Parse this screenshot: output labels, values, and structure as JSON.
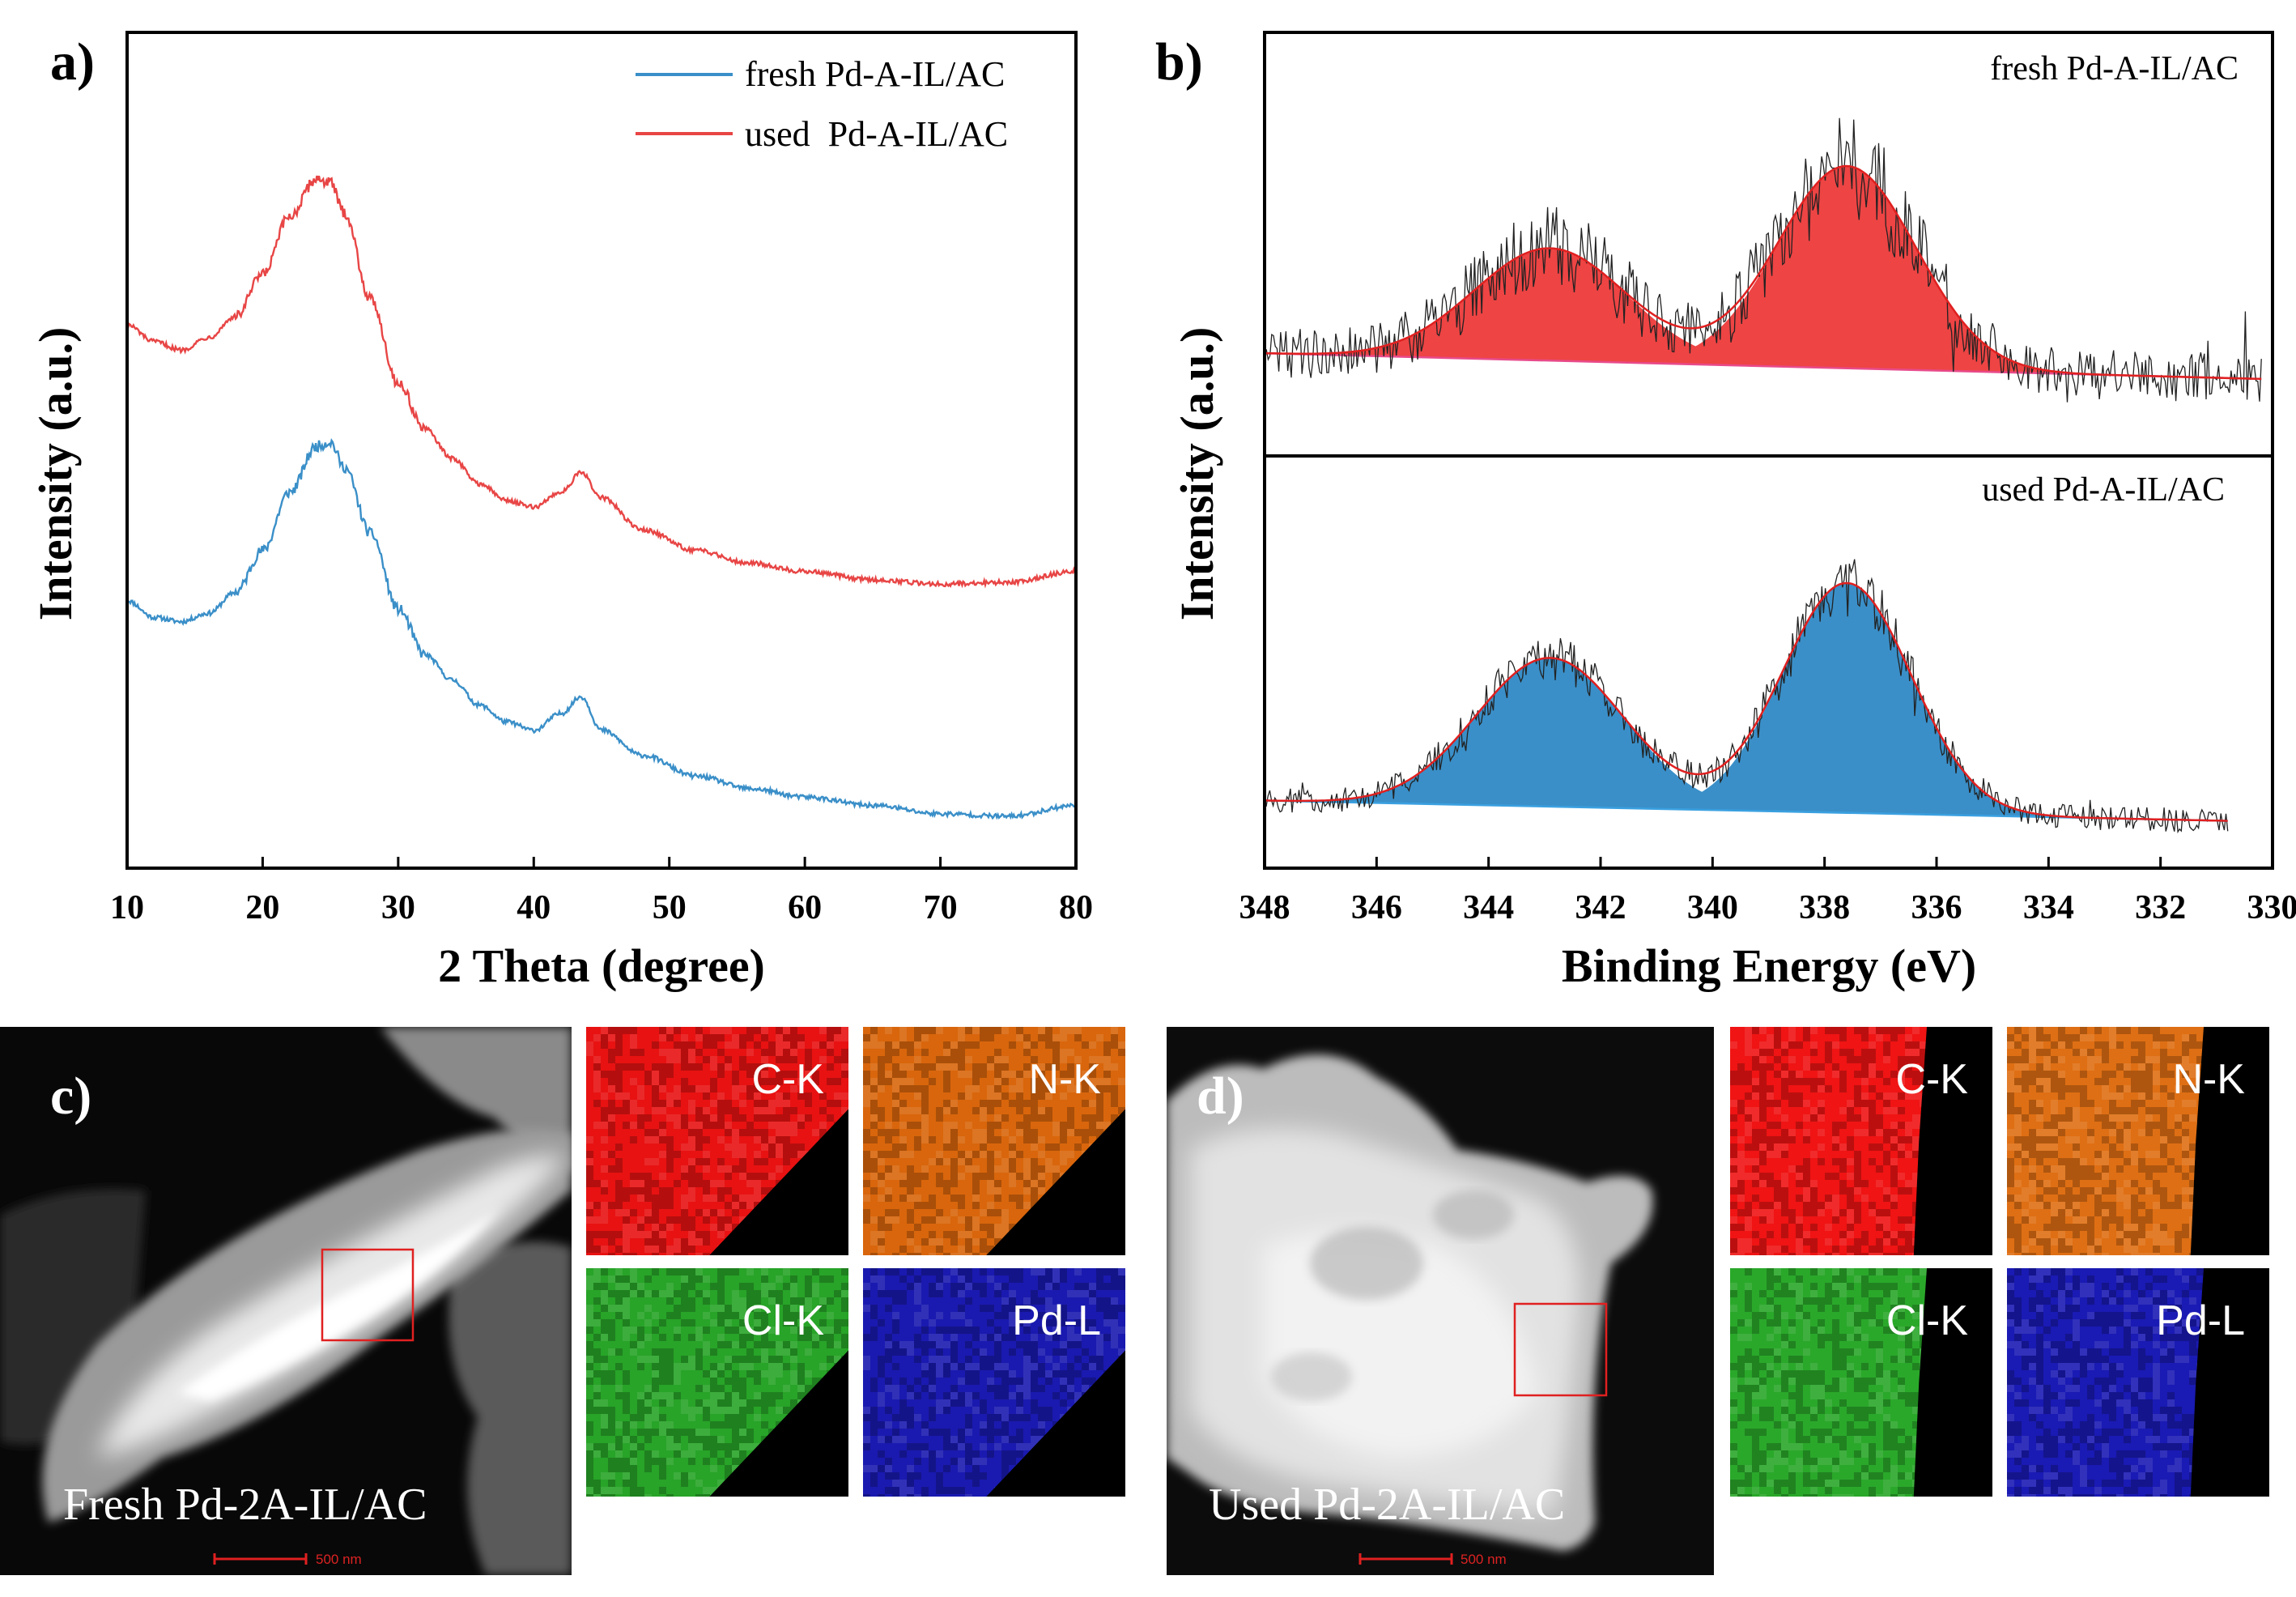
{
  "panel_letters": {
    "a": "a)",
    "b": "b)",
    "c": "c)",
    "d": "d)"
  },
  "chart_data": [
    {
      "id": "a",
      "type": "line",
      "title": "",
      "xlabel": "2 Theta (degree)",
      "ylabel": "Intensity (a.u.)",
      "xlim": [
        10,
        80
      ],
      "ylim": [
        0,
        100
      ],
      "xticks": [
        10,
        20,
        30,
        40,
        50,
        60,
        70,
        80
      ],
      "legend_position": "top-right",
      "series": [
        {
          "name": "fresh Pd-A-IL/AC",
          "color": "#3a8fc8",
          "x": [
            10,
            12,
            14,
            16,
            18,
            20,
            22,
            24,
            25,
            26,
            28,
            30,
            32,
            34,
            36,
            38,
            40,
            42,
            43.5,
            45,
            48,
            52,
            56,
            60,
            65,
            70,
            75,
            80
          ],
          "y": [
            32,
            30,
            29.5,
            30.5,
            33,
            38,
            45,
            50.5,
            51,
            48,
            40,
            31,
            25.5,
            22.5,
            19.5,
            17.5,
            16.5,
            18.5,
            20.5,
            16.5,
            13.5,
            11,
            9.5,
            8.5,
            7.5,
            6.5,
            6.2,
            7.5
          ]
        },
        {
          "name": "used  Pd-A-IL/AC",
          "color": "#e84545",
          "x": [
            10,
            12,
            14,
            16,
            18,
            20,
            22,
            24,
            25,
            26,
            28,
            30,
            32,
            34,
            36,
            38,
            40,
            42,
            43.5,
            45,
            48,
            52,
            56,
            60,
            65,
            70,
            75,
            80
          ],
          "y": [
            65,
            63,
            62,
            63.5,
            66,
            71,
            78,
            82.5,
            82,
            78.5,
            68,
            58,
            52.5,
            49,
            46,
            44,
            43.2,
            45,
            47.3,
            44.3,
            40.5,
            38,
            36.5,
            35.5,
            34.5,
            34,
            34.2,
            35.5
          ]
        }
      ]
    },
    {
      "id": "b",
      "type": "line",
      "title": "",
      "xlabel": "Binding Energy (eV)",
      "ylabel": "Intensity (a.u.)",
      "xlim": [
        348,
        330
      ],
      "xticks": [
        348,
        346,
        344,
        342,
        340,
        338,
        336,
        334,
        332,
        330
      ],
      "subplots": [
        {
          "label": "fresh Pd-A-IL/AC",
          "fill_color": "#ee4444",
          "fit_color": "#e02020",
          "baseline": {
            "x": [
              348,
              330.2
            ],
            "y": [
              10,
              2
            ]
          },
          "peaks": [
            {
              "center": 342.9,
              "height": 35,
              "fwhm": 3.2
            },
            {
              "center": 337.6,
              "height": 63,
              "fwhm": 2.9
            }
          ],
          "noise_amplitude": 13,
          "ylim": [
            -22,
            110
          ]
        },
        {
          "label": "used Pd-A-IL/AC",
          "fill_color": "#3a8fc8",
          "fit_color": "#e02020",
          "baseline": {
            "x": [
              348,
              330.8
            ],
            "y": [
              8,
              2
            ]
          },
          "peaks": [
            {
              "center": 342.9,
              "height": 44,
              "fwhm": 3.1
            },
            {
              "center": 337.6,
              "height": 68,
              "fwhm": 2.7
            }
          ],
          "noise_amplitude": 6,
          "ylim": [
            -12,
            110
          ]
        }
      ]
    }
  ],
  "micrographs": {
    "c": {
      "caption": "Fresh Pd-2A-IL/AC",
      "scale_text": "500 nm"
    },
    "d": {
      "caption": "Used Pd-2A-IL/AC",
      "scale_text": "500 nm"
    }
  },
  "element_maps": {
    "c": [
      {
        "label": "C-K",
        "color": "#e81212"
      },
      {
        "label": "N-K",
        "color": "#d9660c"
      },
      {
        "label": "Cl-K",
        "color": "#28a428"
      },
      {
        "label": "Pd-L",
        "color": "#1a1ab0"
      }
    ],
    "d": [
      {
        "label": "C-K",
        "color": "#f01414"
      },
      {
        "label": "N-K",
        "color": "#df6f14"
      },
      {
        "label": "Cl-K",
        "color": "#2aa82a"
      },
      {
        "label": "Pd-L",
        "color": "#1a1ab4"
      }
    ]
  }
}
